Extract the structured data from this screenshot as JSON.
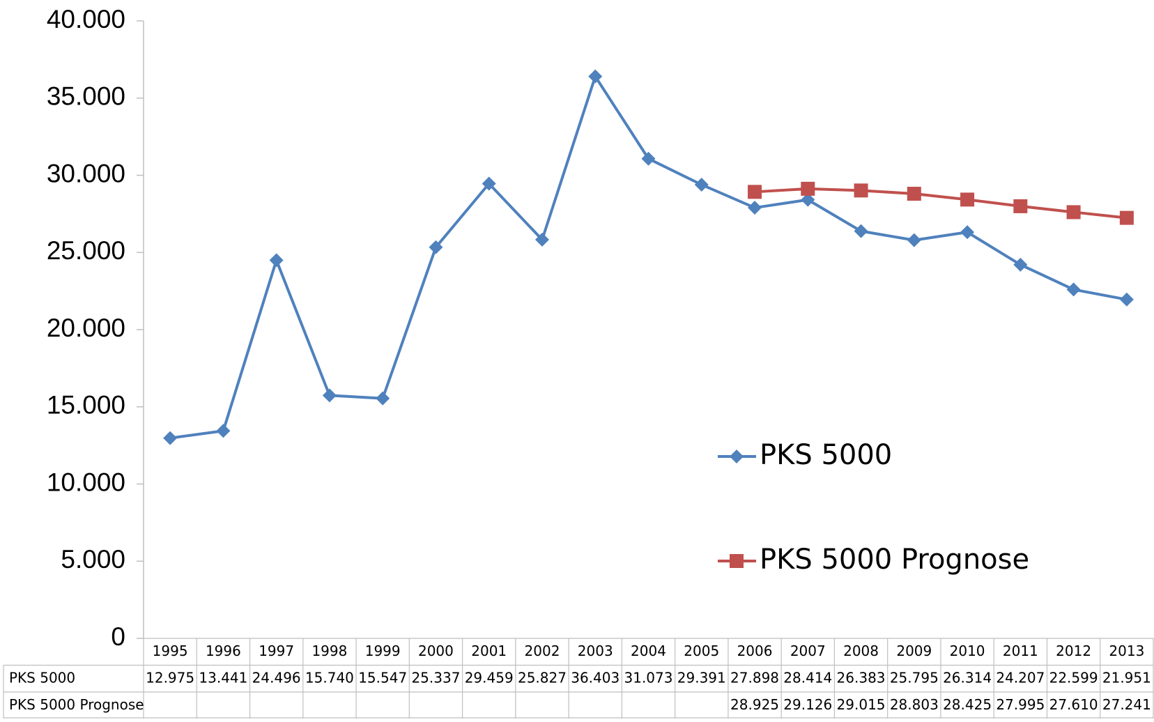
{
  "chart_data": {
    "type": "line",
    "categories": [
      "1995",
      "1996",
      "1997",
      "1998",
      "1999",
      "2000",
      "2001",
      "2002",
      "2003",
      "2004",
      "2005",
      "2006",
      "2007",
      "2008",
      "2009",
      "2010",
      "2011",
      "2012",
      "2013"
    ],
    "series": [
      {
        "name": "PKS 5000",
        "color": "#4f81bd",
        "marker": "diamond",
        "values": [
          12975,
          13441,
          24496,
          15740,
          15547,
          25337,
          29459,
          25827,
          36403,
          31073,
          29391,
          27898,
          28414,
          26383,
          25795,
          26314,
          24207,
          22599,
          21951
        ],
        "value_labels": [
          "12.975",
          "13.441",
          "24.496",
          "15.740",
          "15.547",
          "25.337",
          "29.459",
          "25.827",
          "36.403",
          "31.073",
          "29.391",
          "27.898",
          "28.414",
          "26.383",
          "25.795",
          "26.314",
          "24.207",
          "22.599",
          "21.951"
        ]
      },
      {
        "name": "PKS 5000 Prognose",
        "color": "#c0504d",
        "marker": "square",
        "values": [
          null,
          null,
          null,
          null,
          null,
          null,
          null,
          null,
          null,
          null,
          null,
          28925,
          29126,
          29015,
          28803,
          28425,
          27995,
          27610,
          27241
        ],
        "value_labels": [
          null,
          null,
          null,
          null,
          null,
          null,
          null,
          null,
          null,
          null,
          null,
          "28.925",
          "29.126",
          "29.015",
          "28.803",
          "28.425",
          "27.995",
          "27.610",
          "27.241"
        ]
      }
    ],
    "ylim": [
      0,
      40000
    ],
    "yticks": [
      0,
      {
        "value": 5000,
        "label": "5.000"
      },
      {
        "value": 10000,
        "label": "10.000"
      },
      {
        "value": 15000,
        "label": "15.000"
      },
      {
        "value": 20000,
        "label": "20.000"
      },
      {
        "value": 25000,
        "label": "25.000"
      },
      {
        "value": 30000,
        "label": "30.000"
      },
      {
        "value": 35000,
        "label": "35.000"
      },
      {
        "value": 40000,
        "label": "40.000"
      }
    ],
    "grid": false,
    "legend": "right",
    "data_table": true
  }
}
